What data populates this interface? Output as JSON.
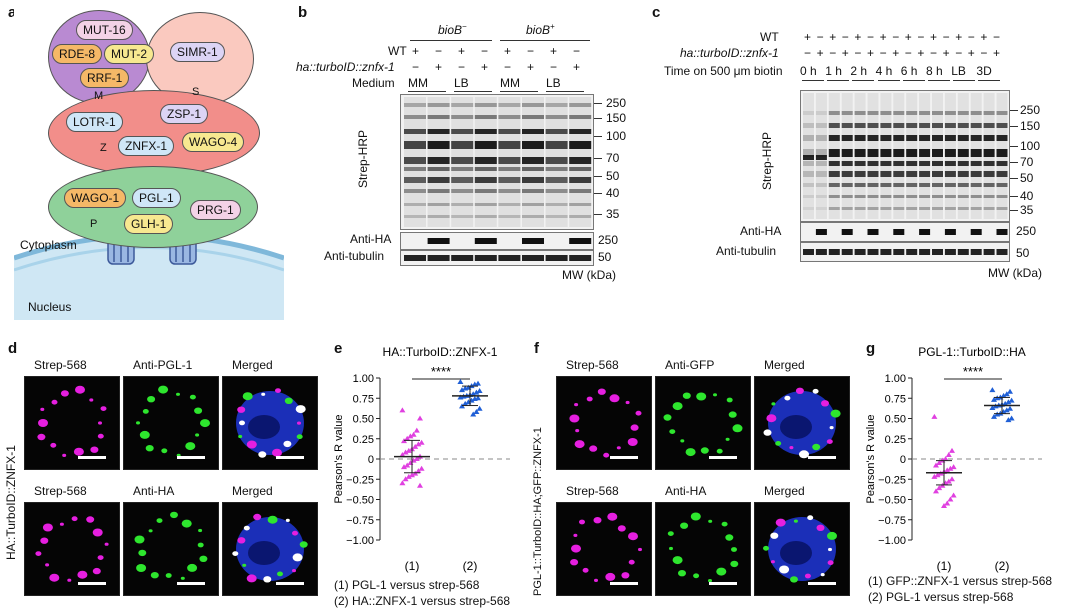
{
  "panel_a": {
    "label": "a",
    "proteins_m": [
      "MUT-16",
      "RDE-8",
      "MUT-2",
      "RRF-1"
    ],
    "proteins_s": [
      "SIMR-1"
    ],
    "proteins_z": [
      "LOTR-1",
      "ZSP-1",
      "ZNFX-1",
      "WAGO-4"
    ],
    "proteins_p": [
      "WAGO-1",
      "PGL-1",
      "GLH-1",
      "PRG-1"
    ],
    "letters": {
      "m": "M",
      "s": "S",
      "z": "Z",
      "p": "P"
    },
    "cytoplasm": "Cytoplasm",
    "nucleus": "Nucleus",
    "colors": {
      "m_oval": "#b98ad2",
      "s_oval": "#fac9bf",
      "z_oval": "#f28e8a",
      "p_oval": "#8fd19a",
      "pill_pink": "#f3d2e6",
      "pill_orange": "#f5b867",
      "pill_blue": "#cfe6f7",
      "pill_yellow": "#f7e890",
      "pill_lav": "#dcd4f5"
    }
  },
  "panel_b": {
    "label": "b",
    "group1": "bioB",
    "group1_sup": "−",
    "group2": "bioB",
    "group2_sup": "+",
    "row_wt": "WT",
    "row_ha": "ha::turboID::znfx-1",
    "row_medium": "Medium",
    "wt_signs": [
      "+",
      "−",
      "+",
      "−",
      "+",
      "−",
      "+",
      "−"
    ],
    "ha_signs": [
      "−",
      "+",
      "−",
      "+",
      "−",
      "+",
      "−",
      "+"
    ],
    "media": [
      "MM",
      "LB",
      "MM",
      "LB"
    ],
    "blot_labels": [
      "Strep-HRP",
      "Anti-HA",
      "Anti-tubulin"
    ],
    "mw_ticks": [
      "250",
      "150",
      "100",
      "70",
      "50",
      "40",
      "35"
    ],
    "mw_ha": "250",
    "mw_tub": "50",
    "mw_label": "MW (kDa)"
  },
  "panel_c": {
    "label": "c",
    "row_wt": "WT",
    "row_ha": "ha::turboID::znfx-1",
    "row_time": "Time on 500 μm biotin",
    "wt_signs": [
      "+",
      "−",
      "+",
      "−",
      "+",
      "−",
      "+",
      "−",
      "+",
      "−",
      "+",
      "−",
      "+",
      "−",
      "+",
      "−"
    ],
    "ha_signs": [
      "−",
      "+",
      "−",
      "+",
      "−",
      "+",
      "−",
      "+",
      "−",
      "+",
      "−",
      "+",
      "−",
      "+",
      "−",
      "+"
    ],
    "times": [
      "0 h",
      "1 h",
      "2 h",
      "4 h",
      "6 h",
      "8 h",
      "LB",
      "3D"
    ],
    "blot_labels": [
      "Strep-HRP",
      "Anti-HA",
      "Anti-tubulin"
    ],
    "mw_ticks": [
      "250",
      "150",
      "100",
      "70",
      "50",
      "40",
      "35"
    ],
    "mw_ha": "250",
    "mw_tub": "50",
    "mw_label": "MW (kDa)"
  },
  "panel_d": {
    "label": "d",
    "side_label": "HA::TurboID::ZNFX-1",
    "row1": [
      "Strep-568",
      "Anti-PGL-1",
      "Merged"
    ],
    "row2": [
      "Strep-568",
      "Anti-HA",
      "Merged"
    ]
  },
  "panel_f": {
    "label": "f",
    "side_label": "PGL-1::TurboID::HA;GFP::ZNFX-1",
    "row1": [
      "Strep-568",
      "Anti-GFP",
      "Merged"
    ],
    "row2": [
      "Strep-568",
      "Anti-HA",
      "Merged"
    ]
  },
  "chart_data": [
    {
      "type": "scatter",
      "panel": "e",
      "title": "HA::TurboID::ZNFX-1",
      "ylabel": "Pearson's R value",
      "ylim": [
        -1.0,
        1.0
      ],
      "yticks": [
        "1.00",
        "0.75",
        "0.50",
        "0.25",
        "0",
        "−0.25",
        "−0.50",
        "−0.75",
        "−1.00"
      ],
      "categories": [
        "(1)",
        "(2)"
      ],
      "significance": "****",
      "colors": [
        "#e040e0",
        "#1f5fd6"
      ],
      "series": [
        {
          "means": 0.03,
          "sd": 0.2,
          "values": [
            0.6,
            0.5,
            0.35,
            0.3,
            0.28,
            0.25,
            0.22,
            0.2,
            0.18,
            0.15,
            0.12,
            0.1,
            0.08,
            0.05,
            0.03,
            0.0,
            -0.02,
            -0.05,
            -0.08,
            -0.1,
            -0.12,
            -0.15,
            -0.18,
            -0.2,
            -0.22,
            -0.25,
            -0.3,
            -0.33
          ]
        },
        {
          "means": 0.78,
          "sd": 0.12,
          "values": [
            0.95,
            0.93,
            0.92,
            0.9,
            0.88,
            0.87,
            0.85,
            0.84,
            0.82,
            0.8,
            0.79,
            0.78,
            0.77,
            0.76,
            0.75,
            0.74,
            0.72,
            0.7,
            0.68,
            0.65,
            0.62,
            0.58,
            0.55
          ]
        }
      ],
      "legend": [
        "(1) PGL-1 versus strep-568",
        "(2) HA::ZNFX-1 versus strep-568"
      ]
    },
    {
      "type": "scatter",
      "panel": "g",
      "title": "PGL-1::TurboID::HA",
      "ylabel": "Pearson's R value",
      "ylim": [
        -1.0,
        1.0
      ],
      "yticks": [
        "1.00",
        "0.75",
        "0.50",
        "0.25",
        "0",
        "−0.25",
        "−0.50",
        "−0.75",
        "−1.00"
      ],
      "categories": [
        "(1)",
        "(2)"
      ],
      "significance": "****",
      "colors": [
        "#e040e0",
        "#1f5fd6"
      ],
      "series": [
        {
          "means": -0.17,
          "sd": 0.15,
          "values": [
            0.52,
            0.1,
            0.05,
            0.0,
            -0.02,
            -0.05,
            -0.08,
            -0.1,
            -0.12,
            -0.14,
            -0.16,
            -0.18,
            -0.2,
            -0.22,
            -0.25,
            -0.28,
            -0.3,
            -0.33,
            -0.36,
            -0.4,
            -0.45,
            -0.5,
            -0.55,
            -0.58
          ]
        },
        {
          "means": 0.66,
          "sd": 0.1,
          "values": [
            0.85,
            0.83,
            0.8,
            0.78,
            0.76,
            0.75,
            0.73,
            0.72,
            0.7,
            0.68,
            0.67,
            0.66,
            0.65,
            0.63,
            0.62,
            0.6,
            0.58,
            0.56,
            0.55,
            0.52,
            0.5,
            0.48
          ]
        }
      ],
      "legend": [
        "(1) GFP::ZNFX-1 versus strep-568",
        "(2) PGL-1 versus strep-568"
      ]
    }
  ]
}
